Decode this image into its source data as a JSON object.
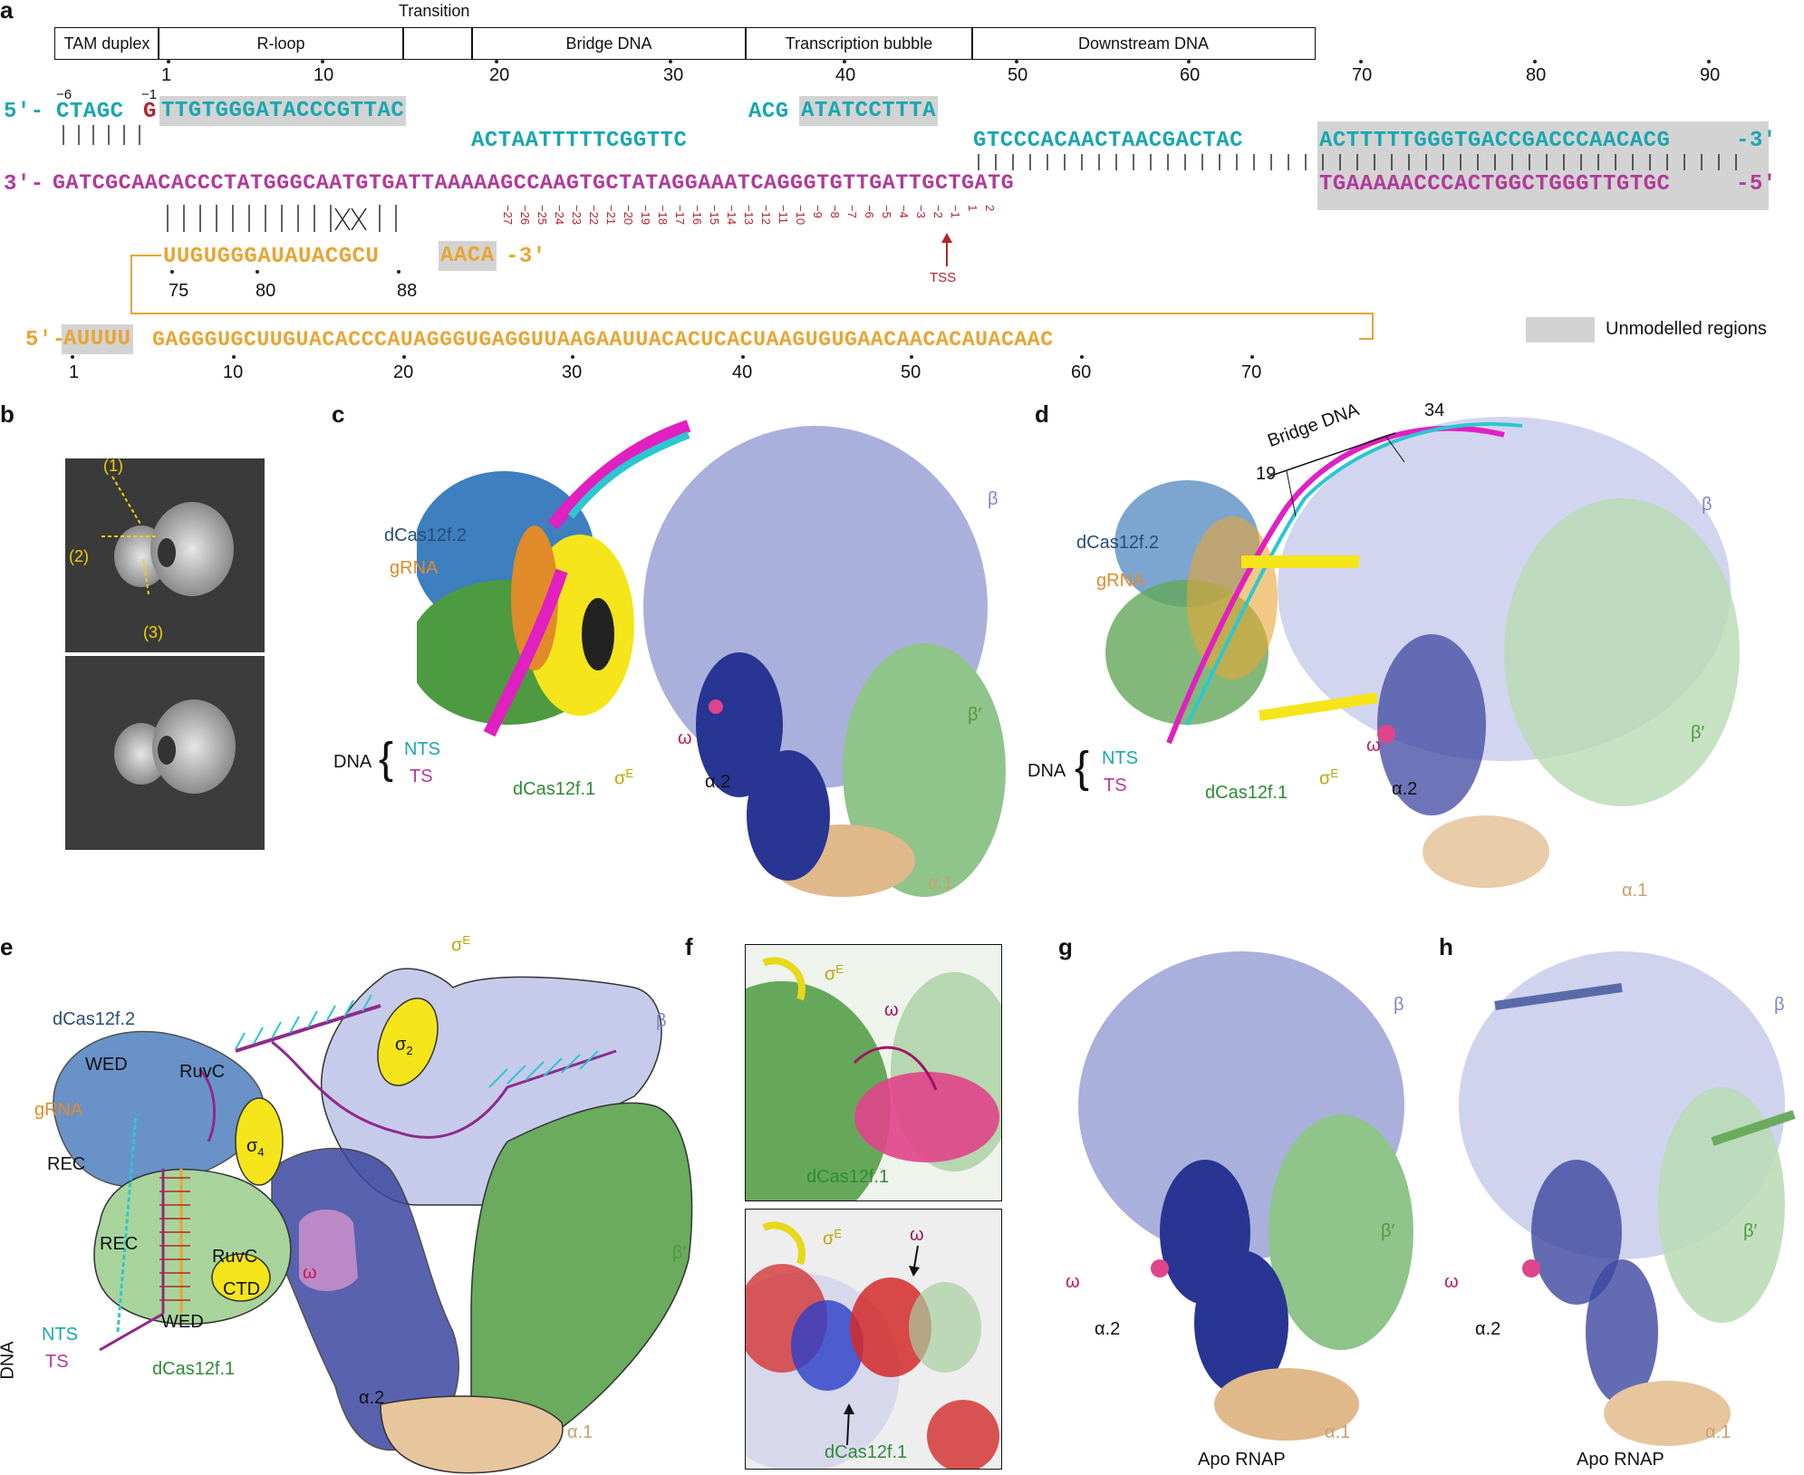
{
  "panels": {
    "a": "a",
    "b": "b",
    "c": "c",
    "d": "d",
    "e": "e",
    "f": "f",
    "g": "g",
    "h": "h"
  },
  "a": {
    "regions": [
      "TAM duplex",
      "R-loop",
      "",
      "Bridge DNA",
      "Transcription bubble",
      "Downstream DNA"
    ],
    "transition": "Transition",
    "top_ticks": [
      "1",
      "10",
      "20",
      "30",
      "40",
      "50",
      "60",
      "70",
      "80",
      "90"
    ],
    "nts_prefix": "5′-",
    "nts_tam": "CTAGC",
    "nts_g": "G",
    "minus6": "−6",
    "minus1": "−1",
    "nts_rloop": "TTGTGGGATACCCGTTAC",
    "nts_bridge": "ACTAATTTTTCGGTTC",
    "nts_bubble1": "ACG",
    "nts_bubble2": "ATATCCTTTA",
    "nts_down1": "GTCCCACAACTAACGACTAC",
    "nts_down2": "ACTTTTTGGGTGACCGACCCAACACG",
    "nts_suffix": "-3′",
    "ts_prefix": "3′-",
    "ts_seq1": "GATCGCAACACCCTATGGGCAATGTGATTAAAAAGCCAAGTGCTATAGGAAATCAGGGTGTTGATTGCTGATG",
    "ts_seq2": "TGAAAAACCCACTGGCTGGGTTGTGC",
    "ts_suffix": "-5′",
    "minus_ticks": [
      "−27",
      "−26",
      "−25",
      "−24",
      "−23",
      "−22",
      "−21",
      "−20",
      "−19",
      "−18",
      "−17",
      "−16",
      "−15",
      "−14",
      "−13",
      "−12",
      "−11",
      "−10",
      "−9",
      "−8",
      "−7",
      "−6",
      "−5",
      "−4",
      "−3",
      "−2",
      "−1",
      "1",
      "2"
    ],
    "tss": "TSS",
    "grna_top1": "UUGUGGGAUAUACGCU",
    "grna_top2": "AACA",
    "grna_top_suffix": "-3′",
    "grna_top_ticks": [
      "75",
      "80",
      "88"
    ],
    "grna_bottom_prefix": "5′-",
    "grna_bottom1": "AUUUU",
    "grna_bottom2": "GAGGGUGCUUGUACACCCAUAGGGUGAGGUUAAGAAUUACACUCACUAAGUGUGAACAACACAUACAAC",
    "bottom_ticks": [
      "1",
      "10",
      "20",
      "30",
      "40",
      "50",
      "60",
      "70"
    ],
    "legend": "Unmodelled regions"
  },
  "b": {
    "labels": [
      "(1)",
      "(2)",
      "(3)"
    ]
  },
  "c": {
    "dcas2": "dCas12f.2",
    "grna": "gRNA",
    "dna": "DNA",
    "nts": "NTS",
    "ts": "TS",
    "dcas1": "dCas12f.1",
    "sigma": "σ",
    "sigmaE": "E",
    "omega": "ω",
    "a2": "α.2",
    "beta": "β",
    "betap": "β′",
    "a1": "α.1"
  },
  "d": {
    "bridge": "Bridge DNA",
    "n19": "19",
    "n34": "34",
    "dcas2": "dCas12f.2",
    "grna": "gRNA",
    "dna": "DNA",
    "nts": "NTS",
    "ts": "TS",
    "dcas1": "dCas12f.1",
    "sigma": "σ",
    "sigmaE": "E",
    "omega": "ω",
    "a2": "α.2",
    "beta": "β",
    "betap": "β′",
    "a1": "α.1"
  },
  "e": {
    "sigmaE": "σ",
    "sigmaEsup": "E",
    "dcas2": "dCas12f.2",
    "wed": "WED",
    "ruvc": "RuvC",
    "grna": "gRNA",
    "rec": "REC",
    "sigma4": "σ",
    "s4sub": "4",
    "sigma2": "σ",
    "s2sub": "2",
    "ctd": "CTD",
    "omega": "ω",
    "dna": "DNA",
    "nts": "NTS",
    "ts": "TS",
    "dcas1": "dCas12f.1",
    "a2": "α.2",
    "beta": "β",
    "betap": "β′",
    "a1": "α.1",
    "rec2": "REC",
    "ruvc2": "RuvC",
    "wed2": "WED"
  },
  "f": {
    "sigma": "σ",
    "sigmaE": "E",
    "omega": "ω",
    "dcas1": "dCas12f.1"
  },
  "g": {
    "beta": "β",
    "betap": "β′",
    "omega": "ω",
    "a2": "α.2",
    "a1": "α.1",
    "apo": "Apo RNAP"
  },
  "h": {
    "beta": "β",
    "betap": "β′",
    "omega": "ω",
    "a2": "α.2",
    "a1": "α.1",
    "apo": "Apo RNAP"
  },
  "colors": {
    "teal": "#1aa7b0",
    "magenta": "#b23a9a",
    "orange": "#e8a534",
    "lavender": "#aab0dc",
    "navy": "#283593",
    "green": "#5aaa50",
    "tan": "#e0b98a",
    "yellow": "#f5e51a",
    "steel": "#3d7fbf",
    "pink": "#e0448a"
  }
}
